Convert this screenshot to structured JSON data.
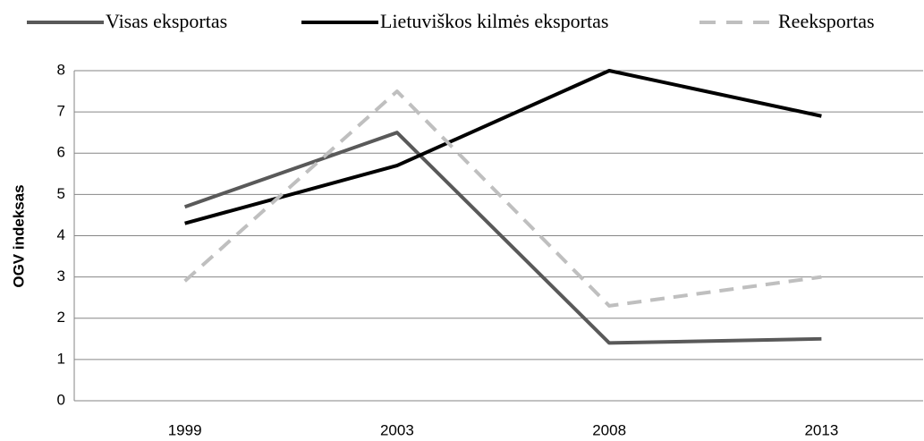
{
  "chart_data": {
    "type": "line",
    "y_label": "OGV indeksas",
    "categories": [
      "1999",
      "2003",
      "2008",
      "2013"
    ],
    "series": [
      {
        "name": "Visas eksportas",
        "color": "#595959",
        "style": "solid",
        "values": [
          4.7,
          6.5,
          1.4,
          1.5
        ]
      },
      {
        "name": "Lietuviškos kilmės eksportas",
        "color": "#000000",
        "style": "solid",
        "values": [
          4.3,
          5.7,
          8,
          6.9
        ]
      },
      {
        "name": "Reeksportas",
        "color": "#bfbfbf",
        "style": "dashed",
        "values": [
          2.9,
          7.5,
          2.3,
          3
        ]
      }
    ],
    "ylim": [
      0,
      8
    ],
    "yticks": [
      0,
      1,
      2,
      3,
      4,
      5,
      6,
      7,
      8
    ],
    "grid": true,
    "legend": "top"
  }
}
